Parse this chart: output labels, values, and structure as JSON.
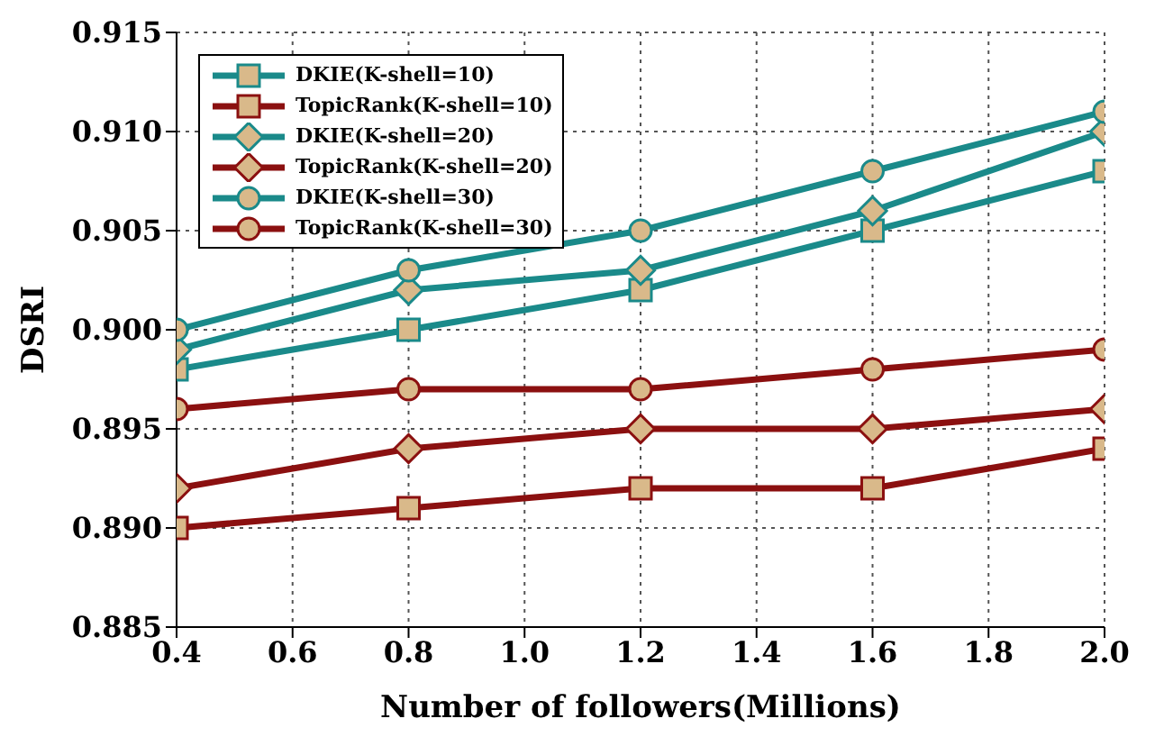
{
  "chart_data": {
    "type": "line",
    "xlabel": "Number of followers(Millions)",
    "ylabel": "DSRI",
    "x": [
      0.4,
      0.8,
      1.2,
      1.6,
      2.0
    ],
    "xlim": [
      0.4,
      2.0
    ],
    "xticks": [
      0.4,
      0.6,
      0.8,
      {
        "value": 1.0,
        "label": "1.0"
      },
      1.2,
      1.4,
      1.6,
      1.8,
      {
        "value": 2.0,
        "label": "2.0"
      }
    ],
    "ylim": [
      0.885,
      0.915
    ],
    "yticks": [
      0.885,
      {
        "value": 0.89,
        "label": "0.890"
      },
      0.895,
      {
        "value": 0.9,
        "label": "0.900"
      },
      0.905,
      {
        "value": 0.91,
        "label": "0.910"
      },
      0.915
    ],
    "grid": true,
    "legend": "top left",
    "line_style": "solid",
    "series": [
      {
        "name": "DKIE(K-shell=10)",
        "color": "#1a8a8a",
        "marker": "square",
        "values": [
          0.898,
          0.9,
          0.902,
          0.905,
          0.908
        ]
      },
      {
        "name": "TopicRank(K-shell=10)",
        "color": "#8b1010",
        "marker": "square",
        "values": [
          0.89,
          0.891,
          0.892,
          0.892,
          0.894
        ]
      },
      {
        "name": "DKIE(K-shell=20)",
        "color": "#1a8a8a",
        "marker": "diamond",
        "values": [
          0.899,
          0.902,
          0.903,
          0.906,
          0.91
        ]
      },
      {
        "name": "TopicRank(K-shell=20)",
        "color": "#8b1010",
        "marker": "diamond",
        "values": [
          0.892,
          0.894,
          0.895,
          0.895,
          0.896
        ]
      },
      {
        "name": "DKIE(K-shell=30)",
        "color": "#1a8a8a",
        "marker": "circle",
        "values": [
          0.9,
          0.903,
          0.905,
          0.908,
          0.911
        ]
      },
      {
        "name": "TopicRank(K-shell=30)",
        "color": "#8b1010",
        "marker": "circle",
        "values": [
          0.896,
          0.897,
          0.897,
          0.898,
          0.899
        ]
      }
    ]
  }
}
